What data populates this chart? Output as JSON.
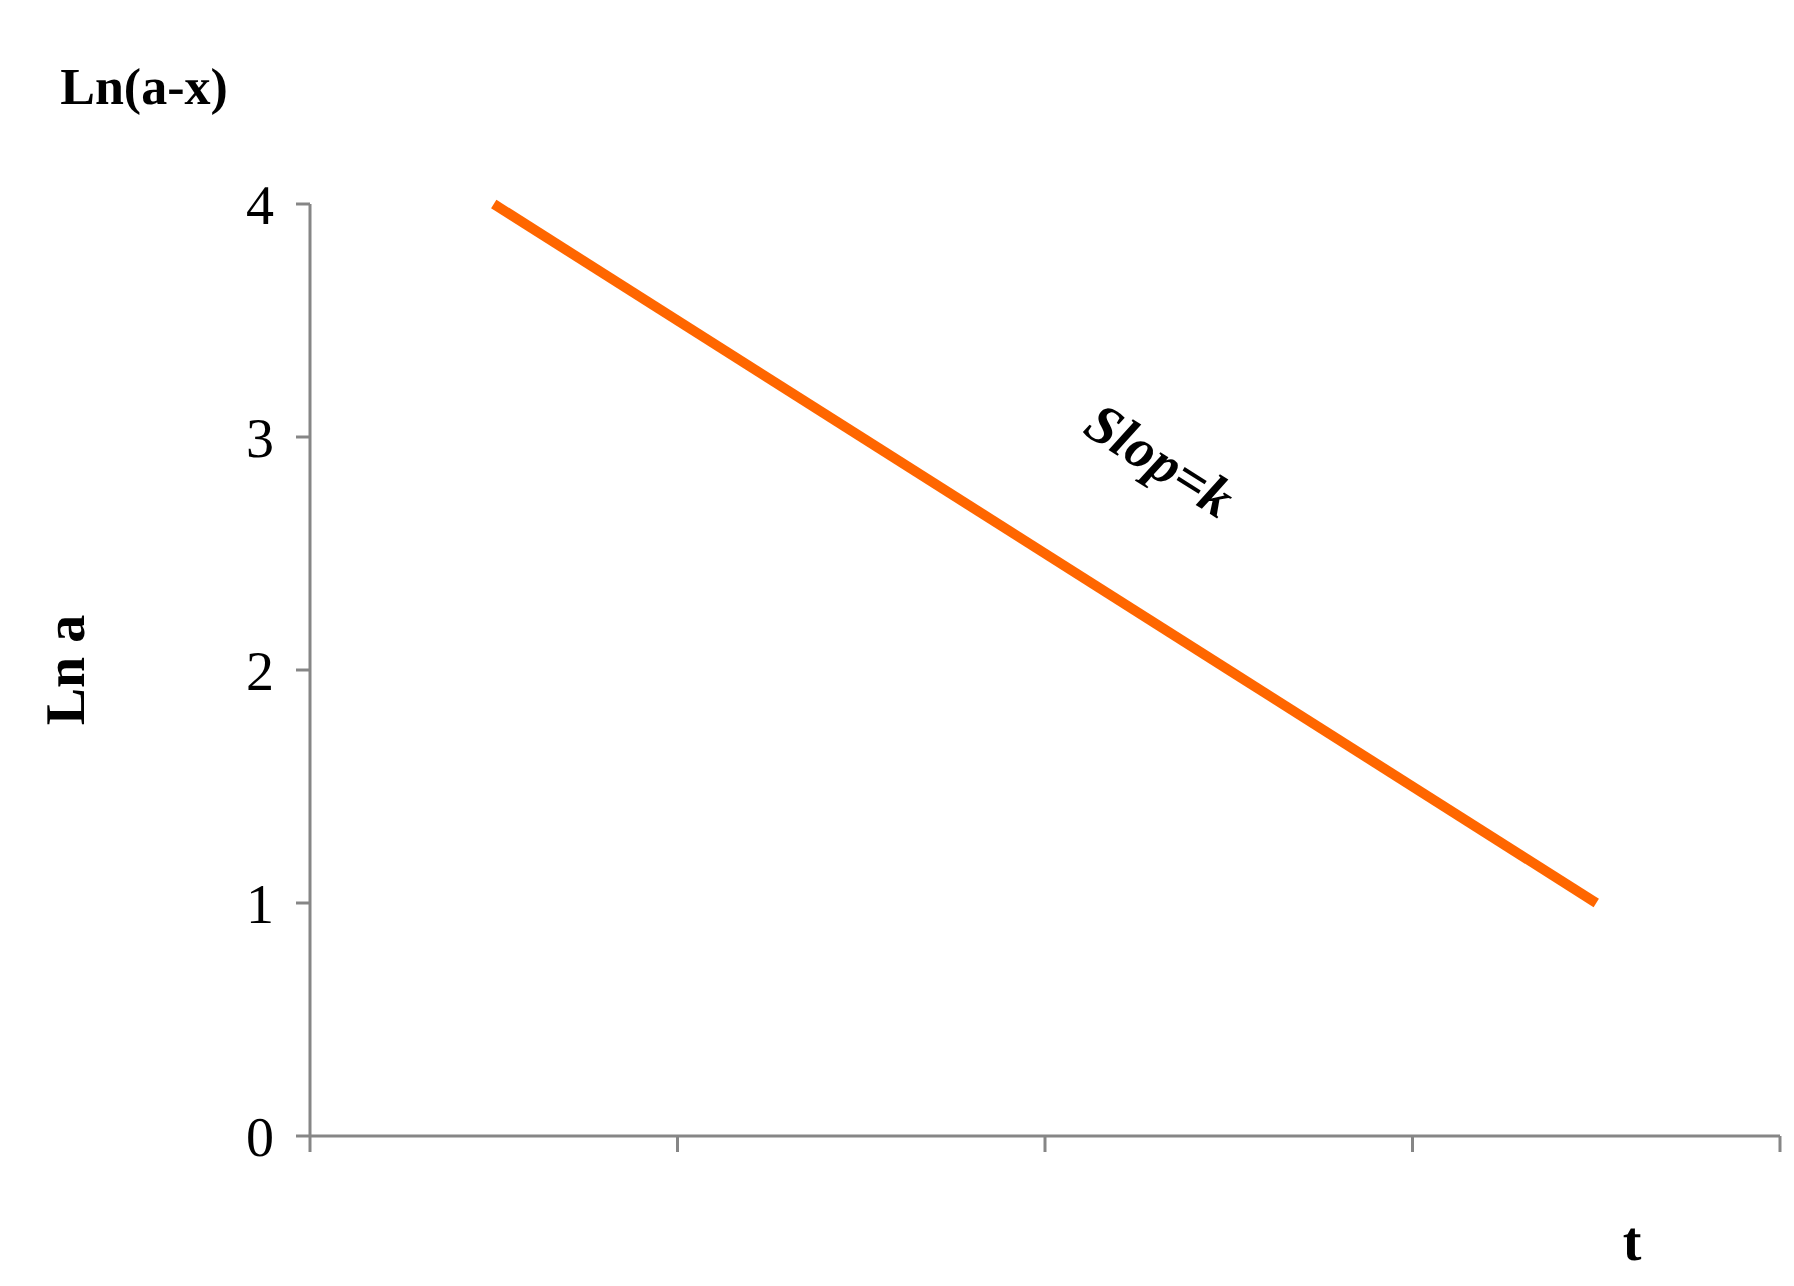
{
  "chart_data": {
    "type": "line",
    "title": "Ln(a-x)",
    "ylabel": "Ln a",
    "xlabel": "t",
    "categories": [
      null,
      null,
      null,
      null
    ],
    "series": [
      {
        "color": "#ff6600",
        "values": [
          4,
          3,
          2,
          1
        ]
      }
    ],
    "ylim": [
      0,
      4
    ],
    "yticks": [
      0,
      1,
      2,
      3,
      4
    ],
    "grid": false,
    "tick_labels": "y",
    "marker": "none",
    "line_style": "solid",
    "annotations": [
      "Slop=k"
    ]
  }
}
